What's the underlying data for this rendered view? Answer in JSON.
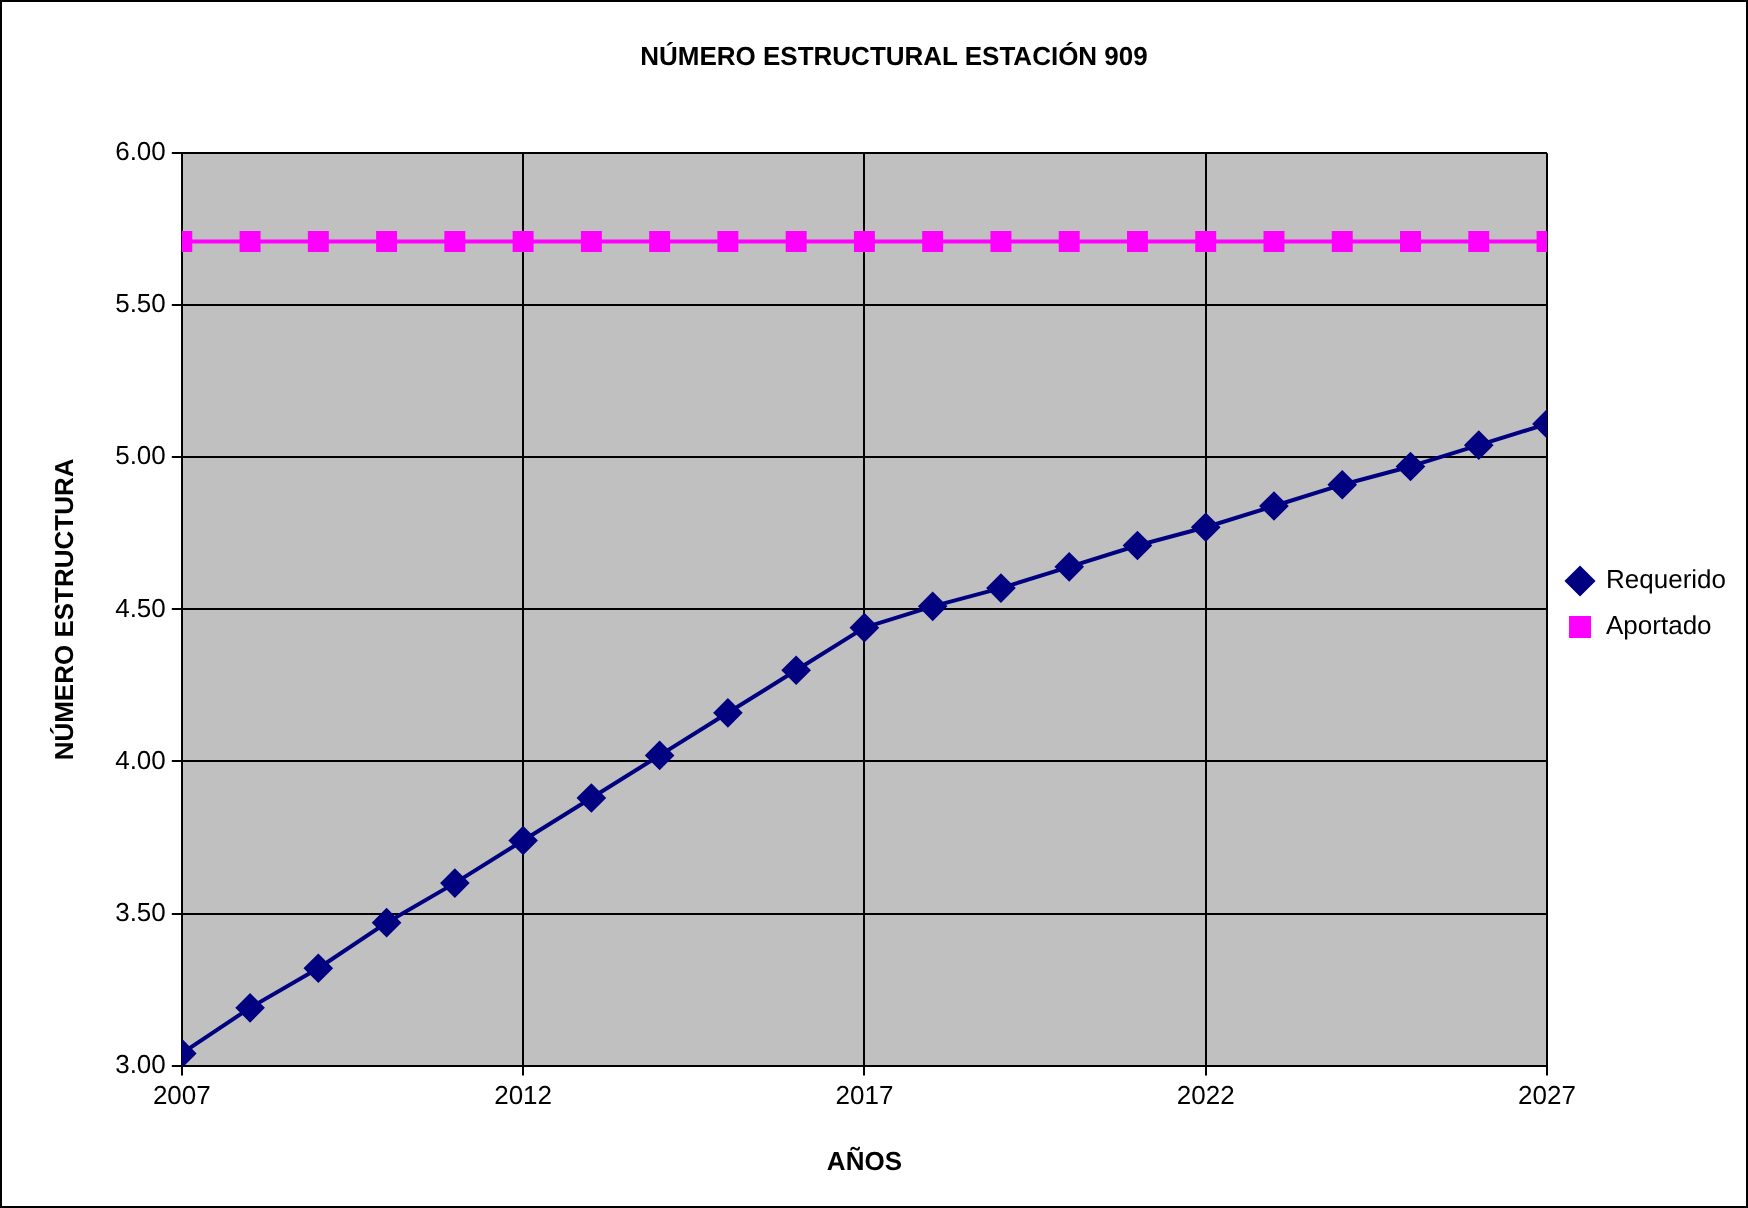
{
  "chart_data": {
    "type": "line",
    "title": "NÚMERO ESTRUCTURAL ESTACIÓN 909",
    "xlabel": "AÑOS",
    "ylabel": "NÚMERO ESTRUCTURA",
    "x": [
      2007,
      2008,
      2009,
      2010,
      2011,
      2012,
      2013,
      2014,
      2015,
      2016,
      2017,
      2018,
      2019,
      2020,
      2021,
      2022,
      2023,
      2024,
      2025,
      2026,
      2027
    ],
    "series": [
      {
        "name": "Requerido",
        "color": "#000080",
        "marker": "diamond",
        "values": [
          3.04,
          3.19,
          3.32,
          3.47,
          3.6,
          3.74,
          3.88,
          4.02,
          4.16,
          4.3,
          4.44,
          4.51,
          4.57,
          4.64,
          4.71,
          4.77,
          4.84,
          4.91,
          4.97,
          5.04,
          5.11
        ]
      },
      {
        "name": "Aportado",
        "color": "#ff00ff",
        "marker": "square",
        "values": [
          5.71,
          5.71,
          5.71,
          5.71,
          5.71,
          5.71,
          5.71,
          5.71,
          5.71,
          5.71,
          5.71,
          5.71,
          5.71,
          5.71,
          5.71,
          5.71,
          5.71,
          5.71,
          5.71,
          5.71,
          5.71
        ]
      }
    ],
    "xlim": [
      2007,
      2027
    ],
    "xticks": [
      2007,
      2012,
      2017,
      2022,
      2027
    ],
    "ylim": [
      3,
      6
    ],
    "yticks": [
      {
        "value": 3,
        "label": "3.00"
      },
      {
        "value": 3.5,
        "label": "3.50"
      },
      {
        "value": 4,
        "label": "4.00"
      },
      {
        "value": 4.5,
        "label": "4.50"
      },
      {
        "value": 5,
        "label": "5.00"
      },
      {
        "value": 5.5,
        "label": "5.50"
      },
      {
        "value": 6,
        "label": "6.00"
      }
    ],
    "grid": true,
    "legend": "right",
    "line_style": "solid"
  }
}
